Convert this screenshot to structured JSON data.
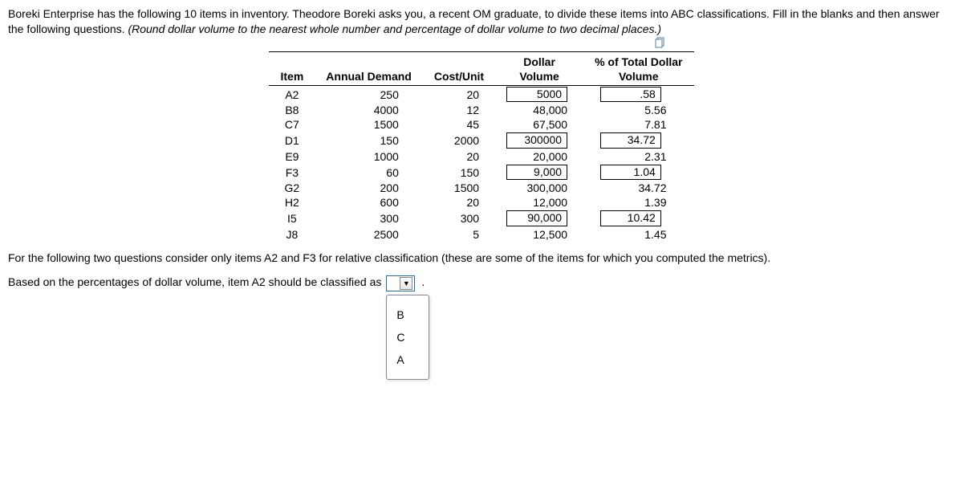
{
  "question": {
    "intro": "Boreki Enterprise has the following 10 items in inventory. Theodore Boreki asks you, a recent OM graduate, to divide these items into ABC classifications. Fill in the blanks and then answer the following questions. ",
    "hint": "(Round dollar volume to the nearest whole number and percentage of dollar volume to two decimal places.)",
    "note": "For the following two questions consider only items A2 and F3 for relative classification (these are some of the items for which you computed the metrics).",
    "answer_prefix": "Based on the percentages of dollar volume, item A2 should be classified as"
  },
  "table": {
    "headers": {
      "item": "Item",
      "demand": "Annual Demand",
      "cost": "Cost/Unit",
      "dollar_top": "Dollar",
      "dollar_bot": "Volume",
      "pct_top": "% of Total Dollar",
      "pct_bot": "Volume"
    },
    "rows": [
      {
        "item": "A2",
        "demand": "250",
        "cost": "20",
        "dollar": "5000",
        "dollar_input": true,
        "pct": ".58",
        "pct_input": true
      },
      {
        "item": "B8",
        "demand": "4000",
        "cost": "12",
        "dollar": "48,000",
        "dollar_input": false,
        "pct": "5.56",
        "pct_input": false
      },
      {
        "item": "C7",
        "demand": "1500",
        "cost": "45",
        "dollar": "67,500",
        "dollar_input": false,
        "pct": "7.81",
        "pct_input": false
      },
      {
        "item": "D1",
        "demand": "150",
        "cost": "2000",
        "dollar": "300000",
        "dollar_input": true,
        "pct": "34.72",
        "pct_input": true
      },
      {
        "item": "E9",
        "demand": "1000",
        "cost": "20",
        "dollar": "20,000",
        "dollar_input": false,
        "pct": "2.31",
        "pct_input": false
      },
      {
        "item": "F3",
        "demand": "60",
        "cost": "150",
        "dollar": "9,000",
        "dollar_input": true,
        "pct": "1.04",
        "pct_input": true
      },
      {
        "item": "G2",
        "demand": "200",
        "cost": "1500",
        "dollar": "300,000",
        "dollar_input": false,
        "pct": "34.72",
        "pct_input": false
      },
      {
        "item": "H2",
        "demand": "600",
        "cost": "20",
        "dollar": "12,000",
        "dollar_input": false,
        "pct": "1.39",
        "pct_input": false
      },
      {
        "item": "I5",
        "demand": "300",
        "cost": "300",
        "dollar": "90,000",
        "dollar_input": true,
        "pct": "10.42",
        "pct_input": true
      },
      {
        "item": "J8",
        "demand": "2500",
        "cost": "5",
        "dollar": "12,500",
        "dollar_input": false,
        "pct": "1.45",
        "pct_input": false
      }
    ]
  },
  "dropdown": {
    "selected": "",
    "options": [
      "B",
      "C",
      "A"
    ]
  },
  "colors": {
    "border_input": "#000000",
    "dropdown_border": "#1a6fb3",
    "text": "#000000"
  }
}
